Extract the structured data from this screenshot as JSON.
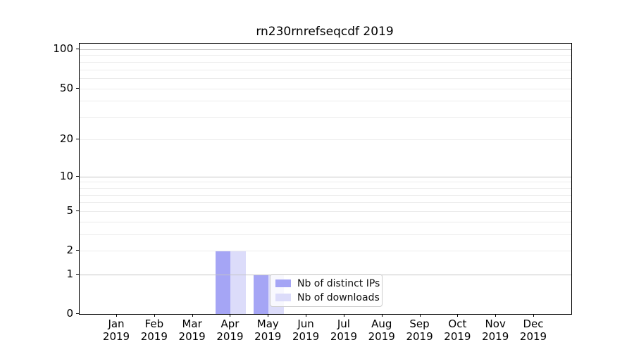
{
  "chart_data": {
    "type": "bar",
    "title": "rn230rnrefseqcdf 2019",
    "x_tick_labels": [
      [
        "Jan",
        "2019"
      ],
      [
        "Feb",
        "2019"
      ],
      [
        "Mar",
        "2019"
      ],
      [
        "Apr",
        "2019"
      ],
      [
        "May",
        "2019"
      ],
      [
        "Jun",
        "2019"
      ],
      [
        "Jul",
        "2019"
      ],
      [
        "Aug",
        "2019"
      ],
      [
        "Sep",
        "2019"
      ],
      [
        "Oct",
        "2019"
      ],
      [
        "Nov",
        "2019"
      ],
      [
        "Dec",
        "2019"
      ]
    ],
    "series": [
      {
        "name": "Nb of distinct IPs",
        "color": "#a5a5f5",
        "values": [
          0,
          0,
          0,
          2,
          1,
          0,
          0,
          0,
          0,
          0,
          0,
          0
        ]
      },
      {
        "name": "Nb of downloads",
        "color": "#dcdcfa",
        "values": [
          0,
          0,
          0,
          2,
          1,
          0,
          0,
          0,
          0,
          0,
          0,
          0
        ]
      }
    ],
    "y_tick_values": [
      0,
      1,
      2,
      5,
      10,
      20,
      50,
      100
    ],
    "y_tick_labels": [
      "0",
      "1",
      "2",
      "5",
      "10",
      "20",
      "50",
      "100"
    ],
    "major_grid_values": [
      1,
      10,
      100
    ],
    "minor_grid_values": [
      2,
      3,
      4,
      5,
      6,
      7,
      8,
      9,
      20,
      30,
      40,
      50,
      60,
      70,
      80,
      90
    ],
    "scale": "log10(1+y)",
    "ylim": [
      0,
      110
    ],
    "grid": true,
    "legend_position": "lower center"
  },
  "colors": {
    "background": "#ffffff",
    "bar_distinct_ips": "#a5a5f5",
    "bar_downloads": "#dcdcfa",
    "major_grid": "#c4c4c4",
    "minor_grid": "#ebebeb",
    "axis": "#000000",
    "legend_border": "#cccccc"
  }
}
